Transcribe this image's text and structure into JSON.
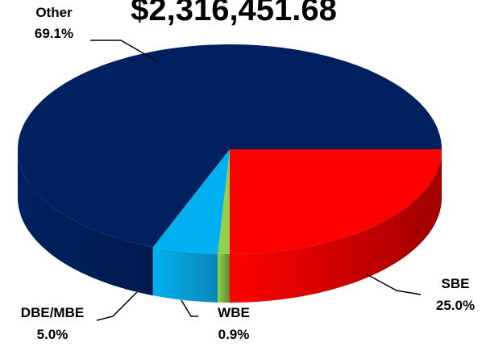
{
  "chart_data": {
    "type": "pie",
    "title": "$2,316,451.68",
    "categories": [
      "SBE",
      "WBE",
      "DBE/MBE",
      "Other"
    ],
    "values": [
      25.0,
      0.9,
      5.0,
      69.1
    ],
    "value_labels": [
      "25.0%",
      "0.9%",
      "5.0%",
      "69.1%"
    ],
    "colors": [
      "#ff0000",
      "#92d050",
      "#00b0f0",
      "#002060"
    ],
    "side_colors": [
      "#a00000",
      "#5c8a2a",
      "#0a86b8",
      "#001a4d"
    ]
  }
}
